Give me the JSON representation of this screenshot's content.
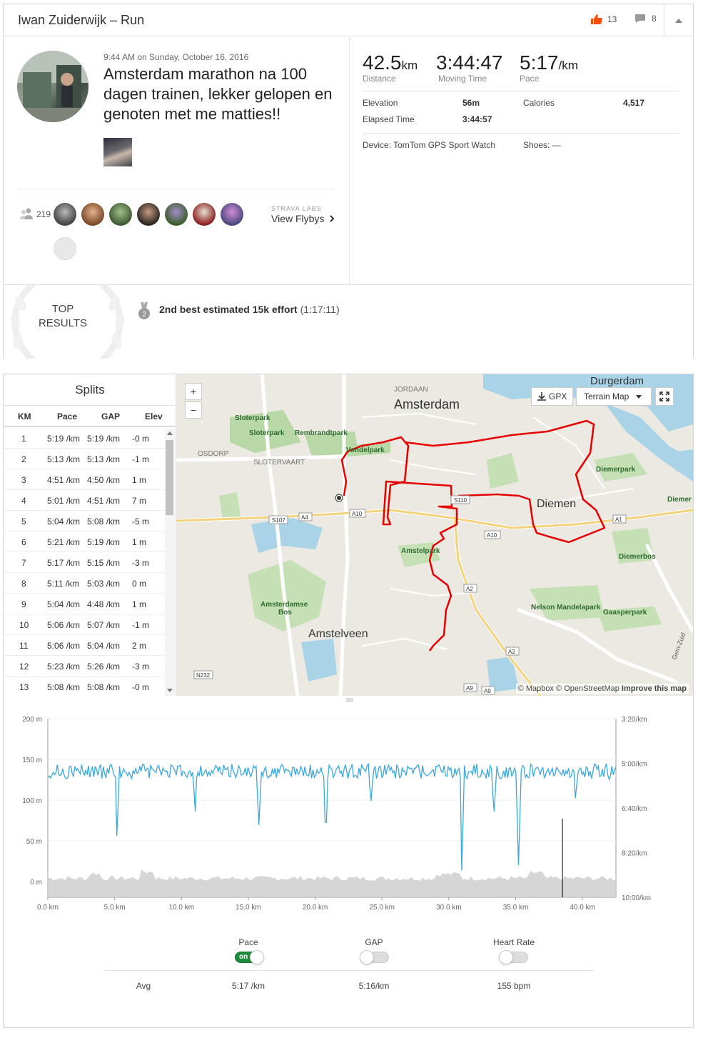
{
  "header": {
    "title": "Iwan Zuiderwijk – Run",
    "kudos_count": "13",
    "comment_count": "8"
  },
  "activity": {
    "datetime": "9:44 AM on Sunday, October 16, 2016",
    "title": "Amsterdam marathon na 100 dagen trainen, lekker gelopen en genoten met me matties!!",
    "group_count": "219",
    "flyby_label": "STRAVA LABS",
    "flyby_link": "View Flybys"
  },
  "stats": {
    "distance_value": "42.5",
    "distance_unit": "km",
    "distance_label": "Distance",
    "moving_time_value": "3:44:47",
    "moving_time_label": "Moving Time",
    "pace_value": "5:17",
    "pace_unit": "/km",
    "pace_label": "Pace",
    "elevation_label": "Elevation",
    "elevation_value": "56m",
    "calories_label": "Calories",
    "calories_value": "4,517",
    "elapsed_label": "Elapsed Time",
    "elapsed_value": "3:44:57",
    "device_label": "Device: TomTom GPS Sport Watch",
    "shoes_label": "Shoes: —"
  },
  "results": {
    "title_line1": "TOP",
    "title_line2": "RESULTS",
    "medal_rank": "2",
    "effort_text": "2nd best estimated 15k effort",
    "effort_time": "(1:17:11)"
  },
  "splits": {
    "title": "Splits",
    "headers": [
      "KM",
      "Pace",
      "GAP",
      "Elev"
    ],
    "rows": [
      {
        "km": "1",
        "pace": "5:19 /km",
        "gap": "5:19 /km",
        "elev": "-0 m"
      },
      {
        "km": "2",
        "pace": "5:13 /km",
        "gap": "5:13 /km",
        "elev": "-1 m"
      },
      {
        "km": "3",
        "pace": "4:51 /km",
        "gap": "4:50 /km",
        "elev": "1 m"
      },
      {
        "km": "4",
        "pace": "5:01 /km",
        "gap": "4:51 /km",
        "elev": "7 m"
      },
      {
        "km": "5",
        "pace": "5:04 /km",
        "gap": "5:08 /km",
        "elev": "-5 m"
      },
      {
        "km": "6",
        "pace": "5:21 /km",
        "gap": "5:19 /km",
        "elev": "1 m"
      },
      {
        "km": "7",
        "pace": "5:17 /km",
        "gap": "5:15 /km",
        "elev": "-3 m"
      },
      {
        "km": "8",
        "pace": "5:11 /km",
        "gap": "5:03 /km",
        "elev": "0 m"
      },
      {
        "km": "9",
        "pace": "5:04 /km",
        "gap": "4:48 /km",
        "elev": "1 m"
      },
      {
        "km": "10",
        "pace": "5:06 /km",
        "gap": "5:07 /km",
        "elev": "-1 m"
      },
      {
        "km": "11",
        "pace": "5:06 /km",
        "gap": "5:04 /km",
        "elev": "2 m"
      },
      {
        "km": "12",
        "pace": "5:23 /km",
        "gap": "5:26 /km",
        "elev": "-3 m"
      },
      {
        "km": "13",
        "pace": "5:08 /km",
        "gap": "5:08 /km",
        "elev": "-0 m"
      }
    ]
  },
  "map": {
    "zoom_in": "+",
    "zoom_out": "−",
    "gpx_label": "GPX",
    "terrain_label": "Terrain Map",
    "attribution_prefix": "© Mapbox © OpenStreetMap",
    "attribution_link": "Improve this map",
    "places": {
      "amsterdam": "Amsterdam",
      "amstelveen": "Amstelveen",
      "diemen": "Diemen",
      "durgerdam": "Durgerdam",
      "jordaan": "JORDAAN",
      "osdorp": "OSDORP",
      "slotervaart": "SLOTERVAART",
      "sloterpark1": "Sloterpark",
      "sloterpark2": "Sloterpark",
      "rembrandtpark": "Rembrandtpark",
      "vondelpark": "Vondelpark",
      "amstelpark": "Amstelpark",
      "amsterdamse_bos1": "Amsterdamse",
      "amsterdamse_bos2": "Bos",
      "diemerpark": "Diemerpark",
      "diemer": "Diemer",
      "diemerbos": "Diemerbos",
      "nelson": "Nelson Mandelapark",
      "gaasperpark": "Gaasperpark",
      "gein_zuid": "Gein-Zuid"
    },
    "roads": {
      "s107": "S107",
      "a4": "A4",
      "a10a": "A10",
      "s110": "S110",
      "a10b": "A10",
      "a1": "A1",
      "a2a": "A2",
      "a2b": "A2",
      "n232": "N232",
      "a9a": "A9",
      "a9b": "A9"
    }
  },
  "toggles": {
    "pace_label": "Pace",
    "pace_on": "on",
    "gap_label": "GAP",
    "hr_label": "Heart Rate",
    "avg_label": "Avg",
    "avg_pace": "5:17 /km",
    "avg_gap": "5:16/km",
    "avg_hr": "155 bpm"
  },
  "colors": {
    "strava_orange": "#fc4c02",
    "route_red": "#e60000",
    "pace_line": "#3aa8dc",
    "elevation_fill": "#cfcfcf",
    "toggle_on": "#1e8b3a"
  },
  "chart_data": {
    "type": "line",
    "x_unit": "km",
    "xlim": [
      0,
      42.5
    ],
    "x_ticks": [
      "0.0 km",
      "5.0 km",
      "10.0 km",
      "15.0 km",
      "20.0 km",
      "25.0 km",
      "30.0 km",
      "35.0 km",
      "40.0 km"
    ],
    "left_axis": {
      "label": "",
      "ticks": [
        "200 m",
        "150 m",
        "100 m",
        "50 m",
        "0 m"
      ],
      "ylim": [
        0,
        200
      ]
    },
    "right_axis": {
      "label": "",
      "ticks": [
        "3:20/km",
        "5:00/km",
        "6:40/km",
        "8:20/km",
        "10:00/km"
      ]
    },
    "series": [
      {
        "name": "Pace",
        "unit": "min/km",
        "baseline": 5.3,
        "spikes": [
          [
            5.2,
            7.7
          ],
          [
            11.0,
            6.8
          ],
          [
            15.8,
            7.3
          ],
          [
            20.8,
            7.2
          ],
          [
            24.2,
            6.4
          ],
          [
            31.0,
            9.0
          ],
          [
            33.4,
            6.8
          ],
          [
            35.2,
            8.8
          ],
          [
            39.5,
            6.3
          ],
          [
            42.0,
            5.6
          ]
        ]
      },
      {
        "name": "Elevation",
        "unit": "m",
        "baseline": 1,
        "max": 15
      }
    ],
    "cursor_x": 38.5
  }
}
